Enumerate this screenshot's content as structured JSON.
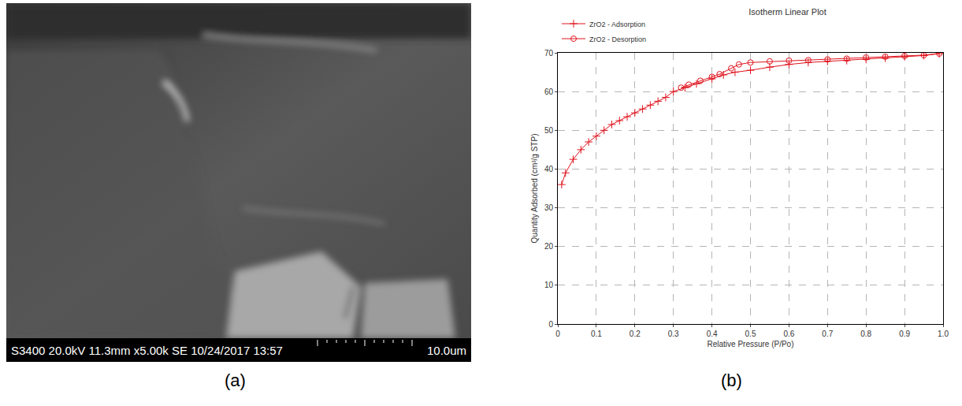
{
  "panel_labels": [
    "(a)",
    "(b)"
  ],
  "image_panel": {
    "info_bar": "S3400 20.0kV 11.3mm x5.00k SE 10/24/2017 13:57",
    "scale_label": "10.0um"
  },
  "chart_data": {
    "type": "line",
    "title": "Isotherm Linear Plot",
    "x_label": "Relative Pressure (P/Po)",
    "y_label": "Quantity Adsorbed (cm³/g STP)",
    "xlim": [
      0,
      1
    ],
    "xticks": [
      0,
      0.1,
      0.2,
      0.3,
      0.4,
      0.5,
      0.6,
      0.7,
      0.8,
      0.9,
      {
        "value": 1,
        "label": "1.0"
      }
    ],
    "ylim": [
      0,
      70
    ],
    "yticks": [
      0,
      10,
      20,
      30,
      40,
      50,
      60,
      70
    ],
    "grid": true,
    "legend": "top left",
    "series": [
      {
        "name": "ZrO2 - Adsorption",
        "color": "#e0141e",
        "marker": "cross",
        "line_style": "solid",
        "x": [
          0.01,
          0.02,
          0.04,
          0.06,
          0.08,
          0.1,
          0.12,
          0.14,
          0.16,
          0.18,
          0.2,
          0.22,
          0.24,
          0.26,
          0.28,
          0.3,
          0.33,
          0.36,
          0.4,
          0.43,
          0.46,
          0.5,
          0.55,
          0.6,
          0.65,
          0.7,
          0.75,
          0.8,
          0.85,
          0.9,
          0.95,
          0.99
        ],
        "values": [
          36,
          39,
          42.5,
          45,
          47,
          48.5,
          50,
          51.5,
          52.5,
          53.5,
          54.5,
          55.5,
          56.5,
          57.5,
          58.5,
          60,
          61,
          62,
          63.3,
          64.3,
          65,
          65.5,
          66.3,
          67,
          67.5,
          67.8,
          68,
          68.3,
          68.6,
          69,
          69.3,
          69.8
        ]
      },
      {
        "name": "ZrO2 - Desorption",
        "color": "#e0141e",
        "marker": "circle-open",
        "line_style": "solid",
        "x": [
          0.99,
          0.95,
          0.9,
          0.85,
          0.8,
          0.75,
          0.7,
          0.65,
          0.6,
          0.55,
          0.5,
          0.47,
          0.45,
          0.42,
          0.4,
          0.37,
          0.34,
          0.32
        ],
        "values": [
          69.8,
          69.4,
          69.2,
          69,
          68.8,
          68.5,
          68.3,
          68.1,
          68,
          67.8,
          67.5,
          67,
          66,
          64.5,
          63.8,
          62.8,
          61.8,
          61
        ]
      }
    ]
  }
}
